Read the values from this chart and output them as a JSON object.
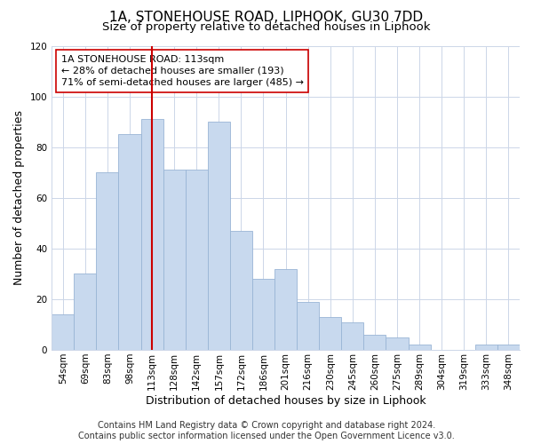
{
  "title": "1A, STONEHOUSE ROAD, LIPHOOK, GU30 7DD",
  "subtitle": "Size of property relative to detached houses in Liphook",
  "xlabel": "Distribution of detached houses by size in Liphook",
  "ylabel": "Number of detached properties",
  "categories": [
    "54sqm",
    "69sqm",
    "83sqm",
    "98sqm",
    "113sqm",
    "128sqm",
    "142sqm",
    "157sqm",
    "172sqm",
    "186sqm",
    "201sqm",
    "216sqm",
    "230sqm",
    "245sqm",
    "260sqm",
    "275sqm",
    "289sqm",
    "304sqm",
    "319sqm",
    "333sqm",
    "348sqm"
  ],
  "values": [
    14,
    30,
    70,
    85,
    91,
    71,
    71,
    90,
    47,
    28,
    32,
    19,
    13,
    11,
    6,
    5,
    2,
    0,
    0,
    2,
    2
  ],
  "bar_color": "#c8d9ee",
  "bar_edge_color": "#99b5d5",
  "vline_x_index": 4,
  "vline_color": "#cc0000",
  "annotation_line1": "1A STONEHOUSE ROAD: 113sqm",
  "annotation_line2": "← 28% of detached houses are smaller (193)",
  "annotation_line3": "71% of semi-detached houses are larger (485) →",
  "annotation_box_color": "#ffffff",
  "annotation_box_edge": "#cc0000",
  "ylim": [
    0,
    120
  ],
  "yticks": [
    0,
    20,
    40,
    60,
    80,
    100,
    120
  ],
  "footer_line1": "Contains HM Land Registry data © Crown copyright and database right 2024.",
  "footer_line2": "Contains public sector information licensed under the Open Government Licence v3.0.",
  "bg_color": "#ffffff",
  "grid_color": "#ccd6e8",
  "title_fontsize": 11,
  "subtitle_fontsize": 9.5,
  "axis_label_fontsize": 9,
  "tick_fontsize": 7.5,
  "annotation_fontsize": 8,
  "footer_fontsize": 7
}
